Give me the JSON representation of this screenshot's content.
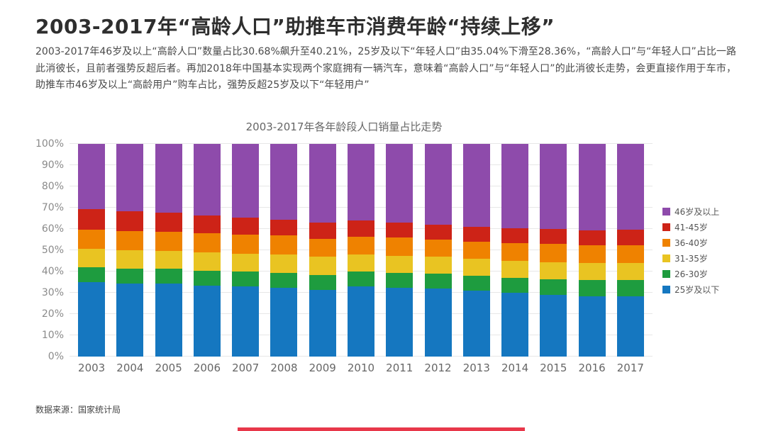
{
  "page": {
    "title": "2003-2017年“高龄人口”助推车市消费年龄“持续上移”",
    "description": "2003-2017年46岁及以上“高龄人口”数量占比30.68%飙升至40.21%，25岁及以下“年轻人口”由35.04%下滑至28.36%，“高龄人口”与“年轻人口”占比一路此消彼长，且前者强势反超后者。再加2018年中国基本实现两个家庭拥有一辆汽车，意味着“高龄人口”与“年轻人口”的此消彼长走势，会更直接作用于车市，助推车市46岁及以上“高龄用户”购车占比，强势反超25岁及以下“年轻用户”",
    "source": "数据来源：国家统计局",
    "accent_color": "#e8374a"
  },
  "chart_data": {
    "type": "bar",
    "stacked": true,
    "title": "2003-2017年各年龄段人口销量占比走势",
    "categories": [
      "2003",
      "2004",
      "2005",
      "2006",
      "2007",
      "2008",
      "2009",
      "2010",
      "2011",
      "2012",
      "2013",
      "2014",
      "2015",
      "2016",
      "2017"
    ],
    "series": [
      {
        "name": "25岁及以下",
        "color": "#1577c0",
        "values": [
          35.04,
          34.5,
          34.2,
          33.5,
          33.0,
          32.5,
          31.5,
          33.0,
          32.5,
          32.0,
          31.0,
          30.0,
          29.0,
          28.5,
          28.36
        ]
      },
      {
        "name": "26-30岁",
        "color": "#1e9c3f",
        "values": [
          7.0,
          7.0,
          7.0,
          7.0,
          7.0,
          7.0,
          7.0,
          7.0,
          7.0,
          7.0,
          7.0,
          7.0,
          7.5,
          7.5,
          7.5
        ]
      },
      {
        "name": "31-35岁",
        "color": "#e9c422",
        "values": [
          8.5,
          8.5,
          8.5,
          8.5,
          8.5,
          8.5,
          8.5,
          8.0,
          8.0,
          8.0,
          8.0,
          8.0,
          8.0,
          8.0,
          8.0
        ]
      },
      {
        "name": "36-40岁",
        "color": "#ef8200",
        "values": [
          9.0,
          9.0,
          9.0,
          9.0,
          9.0,
          9.0,
          8.5,
          8.5,
          8.5,
          8.0,
          8.0,
          8.5,
          8.5,
          8.5,
          8.5
        ]
      },
      {
        "name": "41-45岁",
        "color": "#cd2317",
        "values": [
          9.78,
          9.5,
          9.0,
          8.5,
          8.0,
          7.5,
          7.5,
          7.5,
          7.0,
          7.0,
          7.0,
          7.0,
          7.0,
          7.0,
          7.43
        ]
      },
      {
        "name": "46岁及以上",
        "color": "#8e4bab",
        "values": [
          30.68,
          31.5,
          32.3,
          33.5,
          34.5,
          35.5,
          37.0,
          36.0,
          37.0,
          38.0,
          39.0,
          39.5,
          40.0,
          40.5,
          40.21
        ]
      }
    ],
    "ylabel": "",
    "xlabel": "",
    "ylim": [
      0,
      100
    ],
    "yticks": [
      "0%",
      "10%",
      "20%",
      "30%",
      "40%",
      "50%",
      "60%",
      "70%",
      "80%",
      "90%",
      "100%"
    ],
    "legend_position": "right",
    "legend_order": "reversed",
    "grid": true
  }
}
